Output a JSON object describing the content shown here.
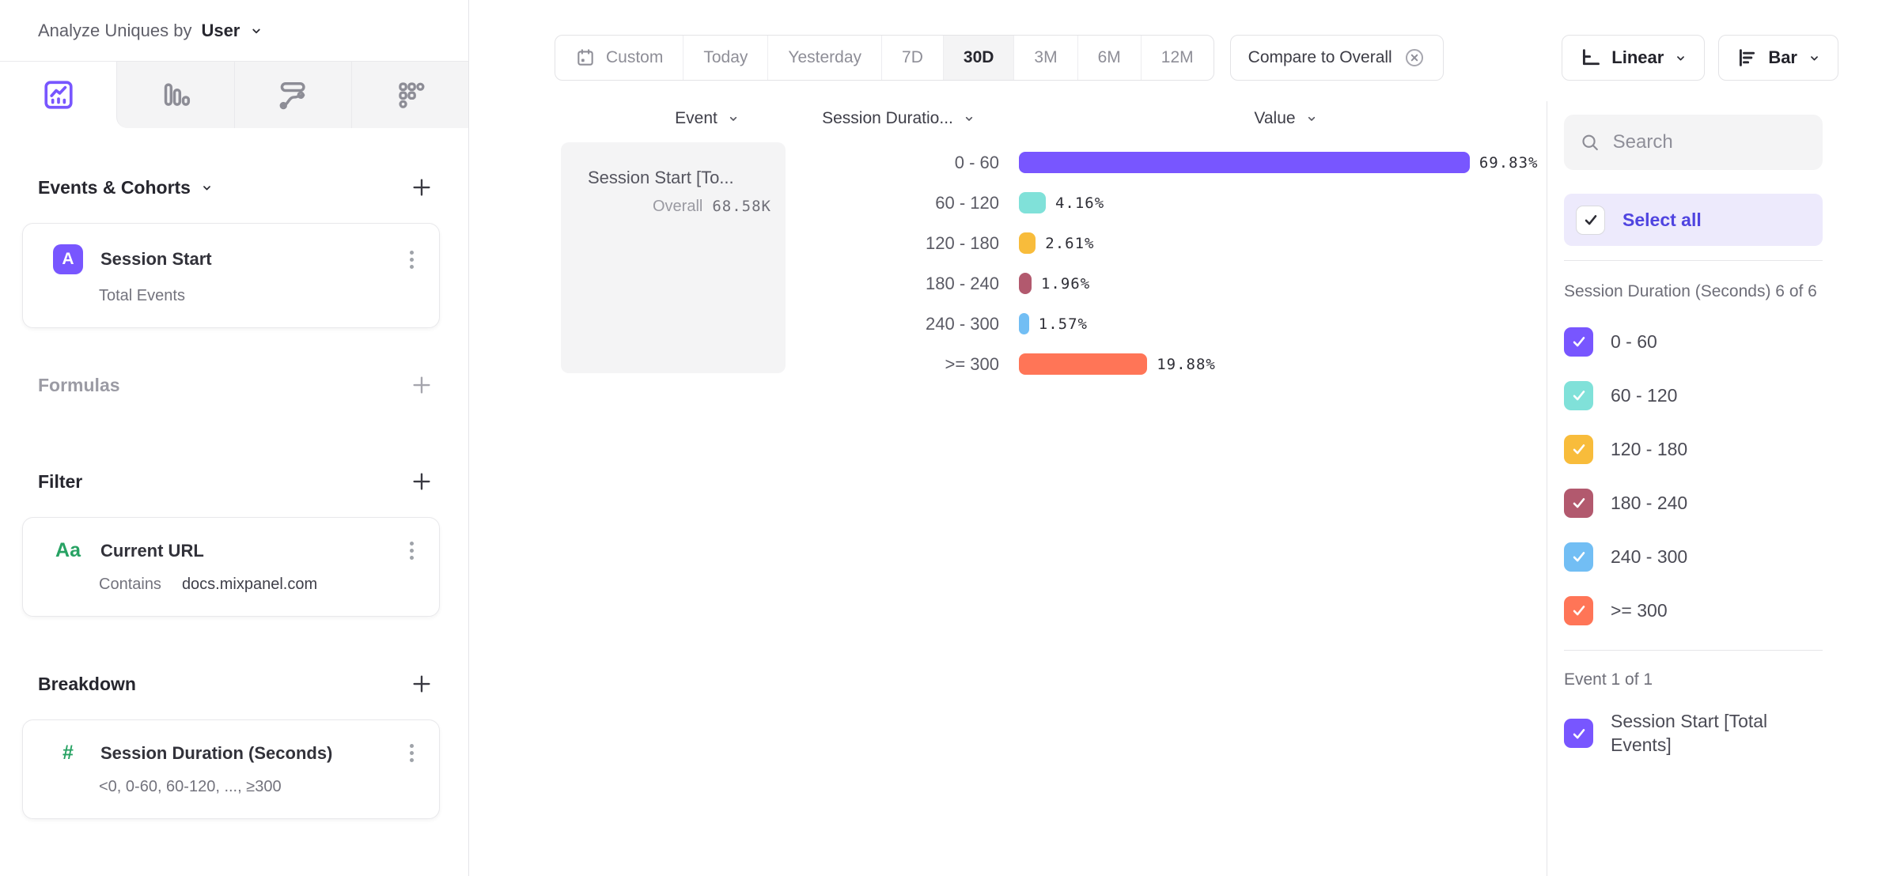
{
  "colors": {
    "accent_purple": "#7856ff",
    "select_all_text": "#4f44e0",
    "panel_gray": "#f4f4f5",
    "border": "#e5e5e8"
  },
  "header": {
    "analyze_label": "Analyze Uniques by",
    "analyze_value": "User"
  },
  "tabs": [
    {
      "icon": "insights-line-chart-icon",
      "selected": true
    },
    {
      "icon": "bar-chart-icon",
      "selected": false
    },
    {
      "icon": "flows-icon",
      "selected": false
    },
    {
      "icon": "retention-grid-icon",
      "selected": false
    }
  ],
  "builder": {
    "events_section": {
      "title": "Events & Cohorts",
      "items": [
        {
          "badge": "A",
          "title": "Session Start",
          "subtitle": "Total Events"
        }
      ]
    },
    "formulas_section": {
      "title": "Formulas"
    },
    "filter_section": {
      "title": "Filter",
      "items": [
        {
          "icon": "Aa",
          "title": "Current URL",
          "operator": "Contains",
          "value": "docs.mixpanel.com"
        }
      ]
    },
    "breakdown_section": {
      "title": "Breakdown",
      "items": [
        {
          "icon": "#",
          "title": "Session Duration (Seconds)",
          "subtitle": "<0, 0-60, 60-120, ..., ≥300"
        }
      ]
    }
  },
  "toolbar": {
    "date_ranges": [
      "Custom",
      "Today",
      "Yesterday",
      "7D",
      "30D",
      "3M",
      "6M",
      "12M"
    ],
    "selected_range": "30D",
    "compare_label": "Compare to Overall",
    "line_type_label": "Linear",
    "chart_type_label": "Bar"
  },
  "chart_data": {
    "type": "bar",
    "orientation": "horizontal",
    "columns": [
      "Event",
      "Session Duratio...",
      "Value"
    ],
    "event": {
      "name": "Session Start [To...",
      "overall_label": "Overall",
      "overall_value": "68.58K"
    },
    "categories": [
      "0 - 60",
      "60 - 120",
      "120 - 180",
      "180 - 240",
      "240 - 300",
      ">= 300"
    ],
    "values": [
      69.83,
      4.16,
      2.61,
      1.96,
      1.57,
      19.88
    ],
    "value_labels": [
      "69.83%",
      "4.16%",
      "2.61%",
      "1.96%",
      "1.57%",
      "19.88%"
    ],
    "colors": [
      "#7856ff",
      "#80e1d9",
      "#f8bc3b",
      "#b2596e",
      "#72bef4",
      "#ff7557"
    ],
    "xlabel": "Value",
    "xlim": [
      0,
      70
    ],
    "grid": false,
    "legend_position": "right-panel-checkboxes"
  },
  "side_panel": {
    "search_placeholder": "Search",
    "select_all_label": "Select all",
    "group1_label": "Session Duration (Seconds) 6 of 6",
    "group1_items": [
      {
        "label": "0 - 60",
        "color": "#7856ff",
        "checked": true
      },
      {
        "label": "60 - 120",
        "color": "#80e1d9",
        "checked": true
      },
      {
        "label": "120 - 180",
        "color": "#f8bc3b",
        "checked": true
      },
      {
        "label": "180 - 240",
        "color": "#b2596e",
        "checked": true
      },
      {
        "label": "240 - 300",
        "color": "#72bef4",
        "checked": true
      },
      {
        "label": ">= 300",
        "color": "#ff7557",
        "checked": true
      }
    ],
    "group2_label": "Event 1 of 1",
    "group2_items": [
      {
        "label": "Session Start [Total Events]",
        "color": "#7856ff",
        "checked": true
      }
    ]
  }
}
